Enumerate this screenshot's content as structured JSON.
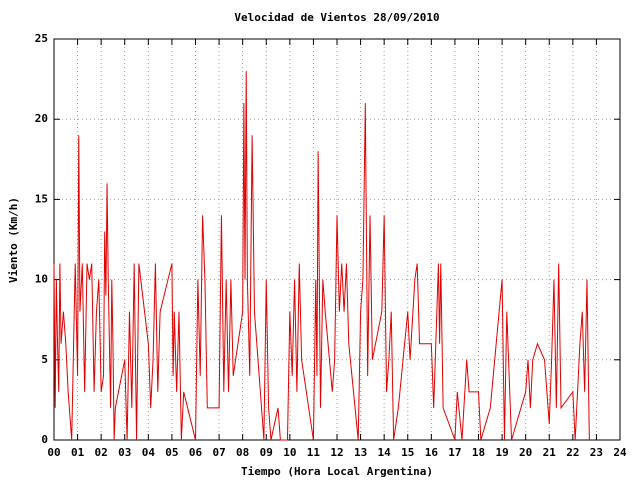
{
  "chart_data": {
    "type": "line",
    "title": "Velocidad de Vientos 28/09/2010",
    "x_label": "Tiempo (Hora Local Argentina)",
    "y_label": "Viento (Km/h)",
    "xlim": [
      0,
      24
    ],
    "ylim": [
      0,
      25
    ],
    "xticks": [
      {
        "value": 0,
        "label": "00"
      },
      {
        "value": 1,
        "label": "01"
      },
      {
        "value": 2,
        "label": "02"
      },
      {
        "value": 3,
        "label": "03"
      },
      {
        "value": 4,
        "label": "04"
      },
      {
        "value": 5,
        "label": "05"
      },
      {
        "value": 6,
        "label": "06"
      },
      {
        "value": 7,
        "label": "07"
      },
      {
        "value": 8,
        "label": "08"
      },
      {
        "value": 9,
        "label": "09"
      },
      {
        "value": 10,
        "label": "10"
      },
      {
        "value": 11,
        "label": "11"
      },
      {
        "value": 12,
        "label": "12"
      },
      {
        "value": 13,
        "label": "13"
      },
      {
        "value": 14,
        "label": "14"
      },
      {
        "value": 15,
        "label": "15"
      },
      {
        "value": 16,
        "label": "16"
      },
      {
        "value": 17,
        "label": "17"
      },
      {
        "value": 18,
        "label": "18"
      },
      {
        "value": 19,
        "label": "19"
      },
      {
        "value": 20,
        "label": "20"
      },
      {
        "value": 21,
        "label": "21"
      },
      {
        "value": 22,
        "label": "22"
      },
      {
        "value": 23,
        "label": "23"
      },
      {
        "value": 24,
        "label": "24"
      }
    ],
    "yticks": [
      0,
      5,
      10,
      15,
      20,
      25
    ],
    "grid": true,
    "color": "#e00000",
    "x": [
      0.0,
      0.05,
      0.1,
      0.15,
      0.2,
      0.25,
      0.3,
      0.4,
      0.5,
      0.6,
      0.75,
      0.9,
      1.0,
      1.05,
      1.1,
      1.2,
      1.3,
      1.4,
      1.5,
      1.6,
      1.7,
      1.8,
      1.9,
      2.0,
      2.1,
      2.15,
      2.2,
      2.25,
      2.3,
      2.4,
      2.45,
      2.5,
      2.55,
      2.6,
      3.0,
      3.1,
      3.2,
      3.3,
      3.4,
      3.5,
      3.6,
      4.0,
      4.1,
      4.2,
      4.3,
      4.4,
      4.5,
      5.0,
      5.05,
      5.1,
      5.2,
      5.3,
      5.4,
      5.5,
      6.0,
      6.1,
      6.2,
      6.3,
      6.4,
      6.5,
      7.0,
      7.1,
      7.2,
      7.3,
      7.4,
      7.5,
      7.6,
      8.0,
      8.05,
      8.1,
      8.15,
      8.2,
      8.3,
      8.4,
      8.5,
      8.9,
      9.0,
      9.1,
      9.2,
      9.5,
      9.6,
      9.9,
      10.0,
      10.1,
      10.2,
      10.3,
      10.4,
      10.5,
      10.8,
      11.0,
      11.1,
      11.15,
      11.2,
      11.3,
      11.4,
      11.5,
      11.8,
      11.9,
      12.0,
      12.1,
      12.2,
      12.3,
      12.4,
      12.5,
      12.9,
      13.0,
      13.1,
      13.2,
      13.3,
      13.4,
      13.5,
      13.9,
      14.0,
      14.1,
      14.2,
      14.3,
      14.4,
      14.6,
      15.0,
      15.1,
      15.3,
      15.4,
      15.5,
      16.0,
      16.1,
      16.3,
      16.35,
      16.4,
      16.5,
      17.0,
      17.1,
      17.3,
      17.5,
      17.6,
      18.0,
      18.1,
      18.5,
      19.0,
      19.1,
      19.2,
      19.3,
      19.4,
      19.8,
      20.0,
      20.1,
      20.2,
      20.3,
      20.5,
      20.8,
      21.0,
      21.1,
      21.2,
      21.3,
      21.4,
      21.5,
      22.0,
      22.1,
      22.3,
      22.4,
      22.5,
      22.6,
      22.7
    ],
    "values": [
      11,
      2,
      10,
      6,
      3,
      11,
      6,
      8,
      6,
      3,
      0,
      11,
      4,
      19,
      8,
      11,
      3,
      11,
      10,
      11,
      3,
      8,
      10,
      3,
      4,
      13,
      9,
      16,
      10,
      2,
      10,
      6,
      0,
      2,
      5,
      0,
      8,
      2,
      11,
      0,
      11,
      6,
      2,
      5,
      11,
      3,
      8,
      11,
      4,
      8,
      3,
      8,
      0,
      3,
      0,
      10,
      4,
      14,
      10,
      2,
      2,
      14,
      3,
      10,
      3,
      10,
      4,
      8,
      21,
      10,
      23,
      10,
      4,
      19,
      8,
      0,
      10,
      2,
      0,
      2,
      0,
      0,
      8,
      4,
      10,
      3,
      11,
      5,
      2,
      0,
      10,
      4,
      18,
      2,
      10,
      8,
      3,
      5,
      14,
      8,
      11,
      8,
      11,
      6,
      0,
      8,
      10,
      21,
      4,
      14,
      5,
      8,
      14,
      3,
      5,
      8,
      0,
      2,
      8,
      5,
      10,
      11,
      6,
      6,
      2,
      11,
      6,
      11,
      2,
      0,
      3,
      0,
      5,
      3,
      3,
      0,
      2,
      10,
      0,
      8,
      4,
      0,
      2,
      3,
      5,
      2,
      5,
      6,
      5,
      1,
      5,
      10,
      2,
      11,
      2,
      3,
      0,
      6,
      8,
      3,
      10,
      0
    ]
  }
}
